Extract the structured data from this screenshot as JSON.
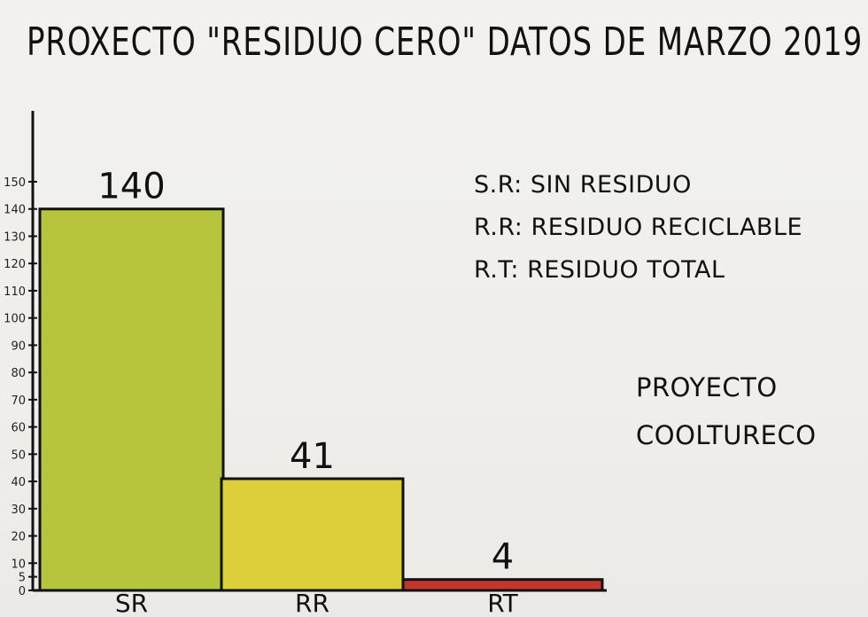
{
  "chart_data": {
    "type": "bar",
    "title": "PROXECTO \"RESIDUO CERO\" DATOS DE MARZO 2019",
    "categories": [
      "SR",
      "RR",
      "RT"
    ],
    "values": [
      140,
      41,
      4
    ],
    "data_labels": [
      "140",
      "41",
      "4"
    ],
    "ylim": [
      0,
      150
    ],
    "yticks": [
      "0",
      "5",
      "10",
      "20",
      "30",
      "40",
      "50",
      "60",
      "70",
      "80",
      "90",
      "100",
      "110",
      "120",
      "130",
      "140",
      "150"
    ],
    "colors": [
      "#b7c53c",
      "#dccf3a",
      "#c4352e"
    ],
    "legend_position": "top-right",
    "legend": [
      "S.R: SIN RESIDUO",
      "R.R: RESIDUO RECICLABLE",
      "R.T: RESIDUO TOTAL"
    ],
    "credit": [
      "PROYECTO",
      "COOLTURECO"
    ]
  }
}
